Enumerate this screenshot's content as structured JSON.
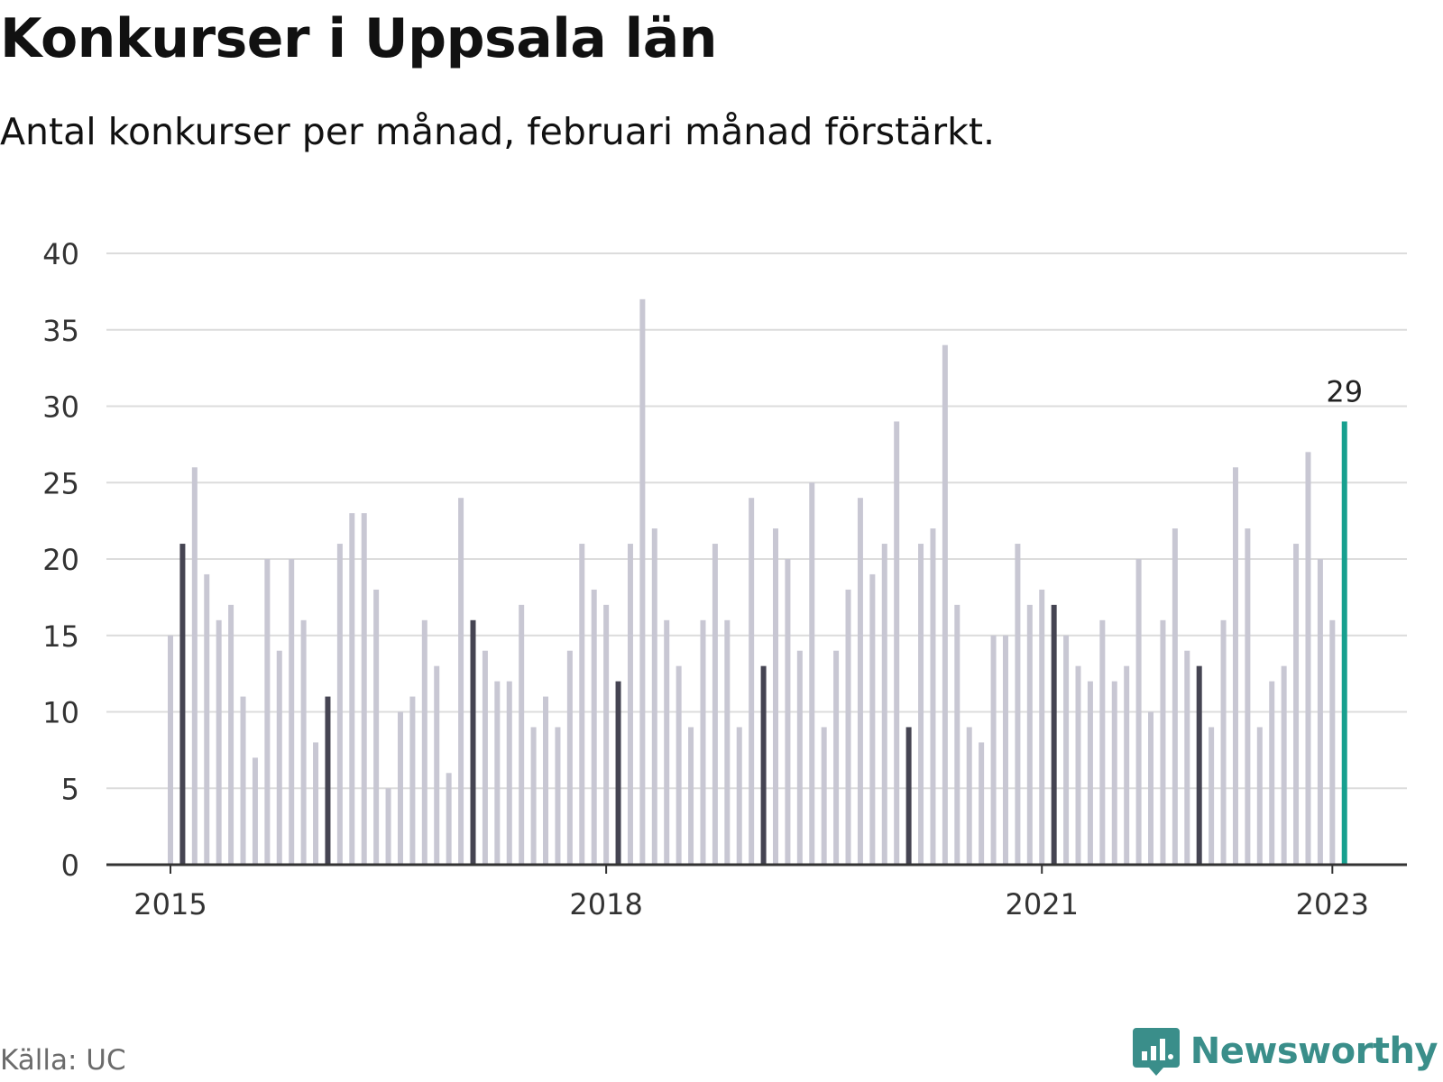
{
  "title": "Konkurser i Uppsala län",
  "subtitle": "Antal konkurser per månad, februari månad förstärkt.",
  "source": "Källa: UC",
  "brand": "Newsworthy",
  "colors": {
    "bar": "#c8c7d3",
    "february_bar": "#454452",
    "latest_bar": "#17a08f",
    "grid": "#dcdcdc",
    "axis": "#333333",
    "brand": "#3a8e8a"
  },
  "chart_data": {
    "type": "bar",
    "start": "2015-01",
    "categories": [
      "2015-01",
      "2015-02",
      "2015-03",
      "2015-04",
      "2015-05",
      "2015-06",
      "2015-07",
      "2015-08",
      "2015-09",
      "2015-10",
      "2015-11",
      "2015-12",
      "2016-01",
      "2016-02",
      "2016-03",
      "2016-04",
      "2016-05",
      "2016-06",
      "2016-07",
      "2016-08",
      "2016-09",
      "2016-10",
      "2016-11",
      "2016-12",
      "2017-01",
      "2017-02",
      "2017-03",
      "2017-04",
      "2017-05",
      "2017-06",
      "2017-07",
      "2017-08",
      "2017-09",
      "2017-10",
      "2017-11",
      "2017-12",
      "2018-01",
      "2018-02",
      "2018-03",
      "2018-04",
      "2018-05",
      "2018-06",
      "2018-07",
      "2018-08",
      "2018-09",
      "2018-10",
      "2018-11",
      "2018-12",
      "2019-01",
      "2019-02",
      "2019-03",
      "2019-04",
      "2019-05",
      "2019-06",
      "2019-07",
      "2019-08",
      "2019-09",
      "2019-10",
      "2019-11",
      "2019-12",
      "2020-01",
      "2020-02",
      "2020-03",
      "2020-04",
      "2020-05",
      "2020-06",
      "2020-07",
      "2020-08",
      "2020-09",
      "2020-10",
      "2020-11",
      "2020-12",
      "2021-01",
      "2021-02",
      "2021-03",
      "2021-04",
      "2021-05",
      "2021-06",
      "2021-07",
      "2021-08",
      "2021-09",
      "2021-10",
      "2021-11",
      "2021-12",
      "2022-01",
      "2022-02",
      "2022-03",
      "2022-04",
      "2022-05",
      "2022-06",
      "2022-07",
      "2022-08",
      "2022-09",
      "2022-10",
      "2022-11",
      "2022-12",
      "2023-01",
      "2023-02"
    ],
    "values": [
      15,
      21,
      26,
      19,
      16,
      17,
      11,
      7,
      20,
      14,
      20,
      16,
      8,
      11,
      21,
      23,
      23,
      18,
      5,
      10,
      11,
      16,
      13,
      6,
      24,
      16,
      14,
      12,
      12,
      17,
      9,
      11,
      9,
      14,
      21,
      18,
      17,
      12,
      21,
      37,
      22,
      16,
      13,
      9,
      16,
      21,
      16,
      9,
      24,
      13,
      22,
      20,
      14,
      25,
      9,
      14,
      18,
      24,
      19,
      21,
      29,
      9,
      21,
      22,
      34,
      17,
      9,
      8,
      15,
      15,
      21,
      17,
      18,
      17,
      15,
      13,
      12,
      16,
      12,
      13,
      20,
      10,
      16,
      22,
      14,
      13,
      9,
      16,
      26,
      22,
      9,
      12,
      13,
      21,
      27,
      20,
      16,
      29
    ],
    "highlight": "February",
    "latest_label": "29",
    "ylim": [
      0,
      40
    ],
    "yticks": [
      0,
      5,
      10,
      15,
      20,
      25,
      30,
      35,
      40
    ],
    "xticks": [
      {
        "label": "2015",
        "index": 0
      },
      {
        "label": "2018",
        "index": 36
      },
      {
        "label": "2021",
        "index": 72
      },
      {
        "label": "2023",
        "index": 96
      }
    ],
    "grid": true,
    "xlabel": "",
    "ylabel": ""
  }
}
